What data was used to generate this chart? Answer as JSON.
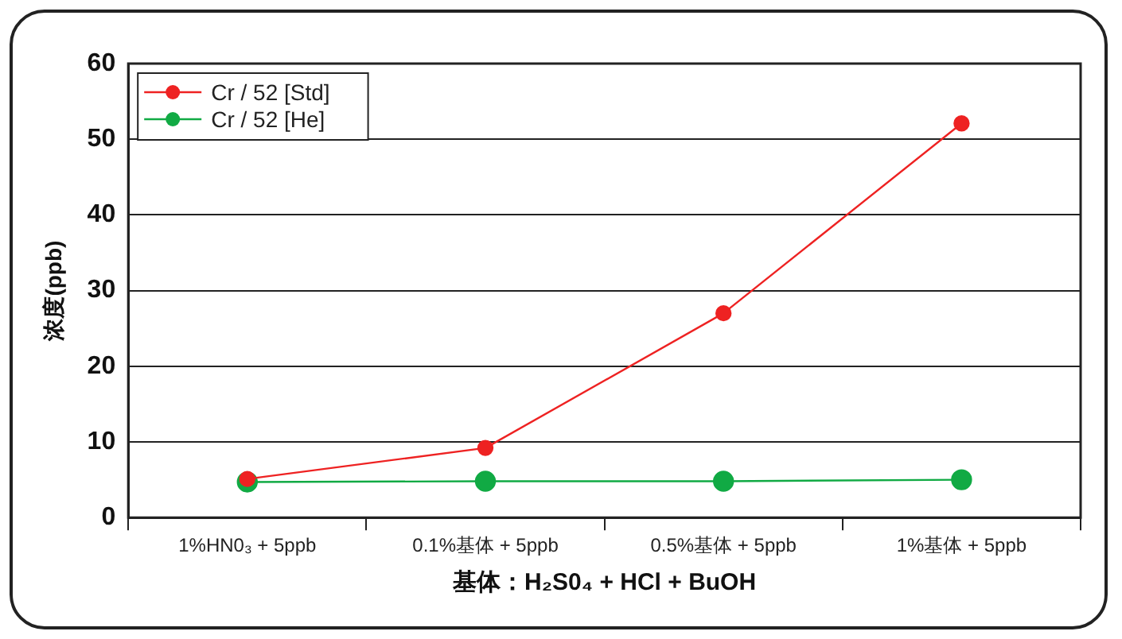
{
  "chart_data": {
    "type": "line",
    "xlabel": "基体：H₂S0₄ + HCl + BuOH",
    "ylabel": "浓度(ppb)",
    "categories": [
      "1%HN0₃ + 5ppb",
      "0.1%基体 + 5ppb",
      "0.5%基体 + 5ppb",
      "1%基体 + 5ppb"
    ],
    "series": [
      {
        "name": "Cr / 52 [Std]",
        "color": "#ee2222",
        "values": [
          5.1,
          9.2,
          27,
          52.1
        ]
      },
      {
        "name": "Cr / 52 [He]",
        "color": "#11aa44",
        "values": [
          4.7,
          4.8,
          4.8,
          5.0
        ]
      }
    ],
    "ylim": [
      0,
      60
    ],
    "yticks": [
      0,
      10,
      20,
      30,
      40,
      50,
      60
    ],
    "grid": "y",
    "legend": "top left",
    "marker": "circle",
    "line_style": "solid"
  }
}
